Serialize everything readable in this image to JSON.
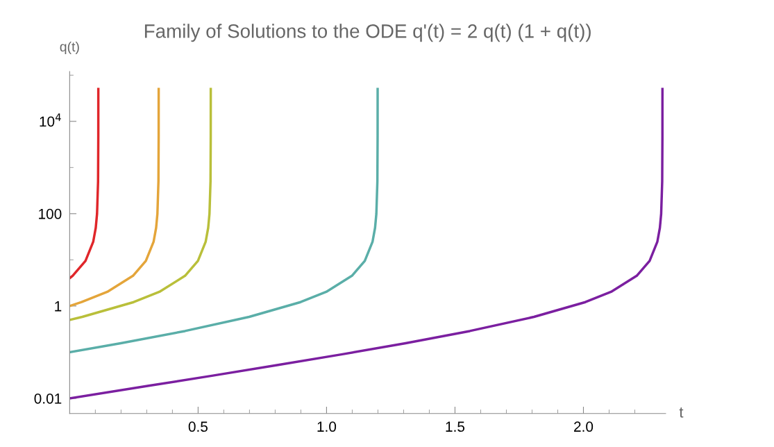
{
  "chart_data": {
    "type": "line",
    "title": "Family of Solutions to the ODE q'(t) = 2 q(t) (1 + q(t))",
    "xlabel": "t",
    "ylabel": "q(t)",
    "log": "y",
    "grid": false,
    "marker": "none",
    "line_style": "solid",
    "xlim": [
      0,
      2.32
    ],
    "ylim": [
      0.0047,
      120000
    ],
    "xticks": [
      {
        "value": 0.1,
        "label": null
      },
      {
        "value": 0.2,
        "label": null
      },
      {
        "value": 0.3,
        "label": null
      },
      {
        "value": 0.4,
        "label": null
      },
      0.5,
      {
        "value": 0.6,
        "label": null
      },
      {
        "value": 0.7,
        "label": null
      },
      {
        "value": 0.8,
        "label": null
      },
      {
        "value": 0.9,
        "label": null
      },
      {
        "value": 1.0,
        "label": "1.0"
      },
      {
        "value": 1.1,
        "label": null
      },
      {
        "value": 1.2,
        "label": null
      },
      {
        "value": 1.3,
        "label": null
      },
      {
        "value": 1.4,
        "label": null
      },
      1.5,
      {
        "value": 1.6,
        "label": null
      },
      {
        "value": 1.7,
        "label": null
      },
      {
        "value": 1.8,
        "label": null
      },
      {
        "value": 1.9,
        "label": null
      },
      {
        "value": 2.0,
        "label": "2.0"
      },
      {
        "value": 2.1,
        "label": null
      },
      {
        "value": 2.2,
        "label": null
      }
    ],
    "yticks": [
      0.01,
      {
        "value": 0.1,
        "label": null
      },
      1,
      {
        "value": 10,
        "label": null
      },
      100,
      {
        "value": 1000,
        "label": null
      },
      {
        "value": 10000,
        "label": "10$^{4}$"
      },
      {
        "value": 100000,
        "label": null
      }
    ],
    "series": [
      {
        "color": "#e0262a",
        "x": [
          0,
          0.0116,
          0.0616,
          0.0916,
          0.1016,
          0.1066,
          0.1106,
          0.1115,
          0.11159
        ],
        "values": [
          4,
          4.52,
          9.51,
          24.5,
          49.5,
          99.5,
          500,
          5000,
          50000
        ]
      },
      {
        "color": "#e4a53a",
        "x": [
          0,
          0.0466,
          0.1466,
          0.2466,
          0.2966,
          0.3266,
          0.3366,
          0.3416,
          0.3456,
          0.3465,
          0.34656
        ],
        "values": [
          1,
          1.216,
          2.03,
          4.52,
          9.51,
          24.5,
          49.5,
          99.5,
          500,
          5000,
          50000
        ]
      },
      {
        "color": "#b9bf3a",
        "x": [
          0,
          0.0493,
          0.2493,
          0.3493,
          0.4493,
          0.4993,
          0.5293,
          0.5393,
          0.5443,
          0.5483,
          0.5492,
          0.54929
        ],
        "values": [
          0.5,
          0.582,
          1.216,
          2.03,
          4.52,
          9.51,
          24.5,
          49.5,
          99.5,
          500,
          5000,
          50000
        ]
      },
      {
        "color": "#5aaea8",
        "x": [
          0,
          0.1989,
          0.4489,
          0.6989,
          0.8989,
          0.9989,
          1.0989,
          1.1489,
          1.1789,
          1.1889,
          1.1939,
          1.1979,
          1.1988,
          1.19889
        ],
        "values": [
          0.1,
          0.1565,
          0.287,
          0.582,
          1.216,
          2.03,
          4.52,
          9.51,
          24.5,
          49.5,
          99.5,
          500,
          5000,
          50000
        ]
      },
      {
        "color": "#7b1fa0",
        "x": [
          0,
          0.3076,
          0.5576,
          0.8076,
          1.0576,
          1.3076,
          1.5576,
          1.8076,
          2.0076,
          2.1076,
          2.2076,
          2.2576,
          2.2876,
          2.2976,
          2.3026,
          2.3066,
          2.3075,
          2.30759
        ],
        "values": [
          0.01,
          0.0187,
          0.0311,
          0.0524,
          0.0894,
          0.1565,
          0.287,
          0.582,
          1.216,
          2.03,
          4.52,
          9.51,
          24.5,
          49.5,
          99.5,
          500,
          5000,
          50000
        ]
      }
    ]
  }
}
